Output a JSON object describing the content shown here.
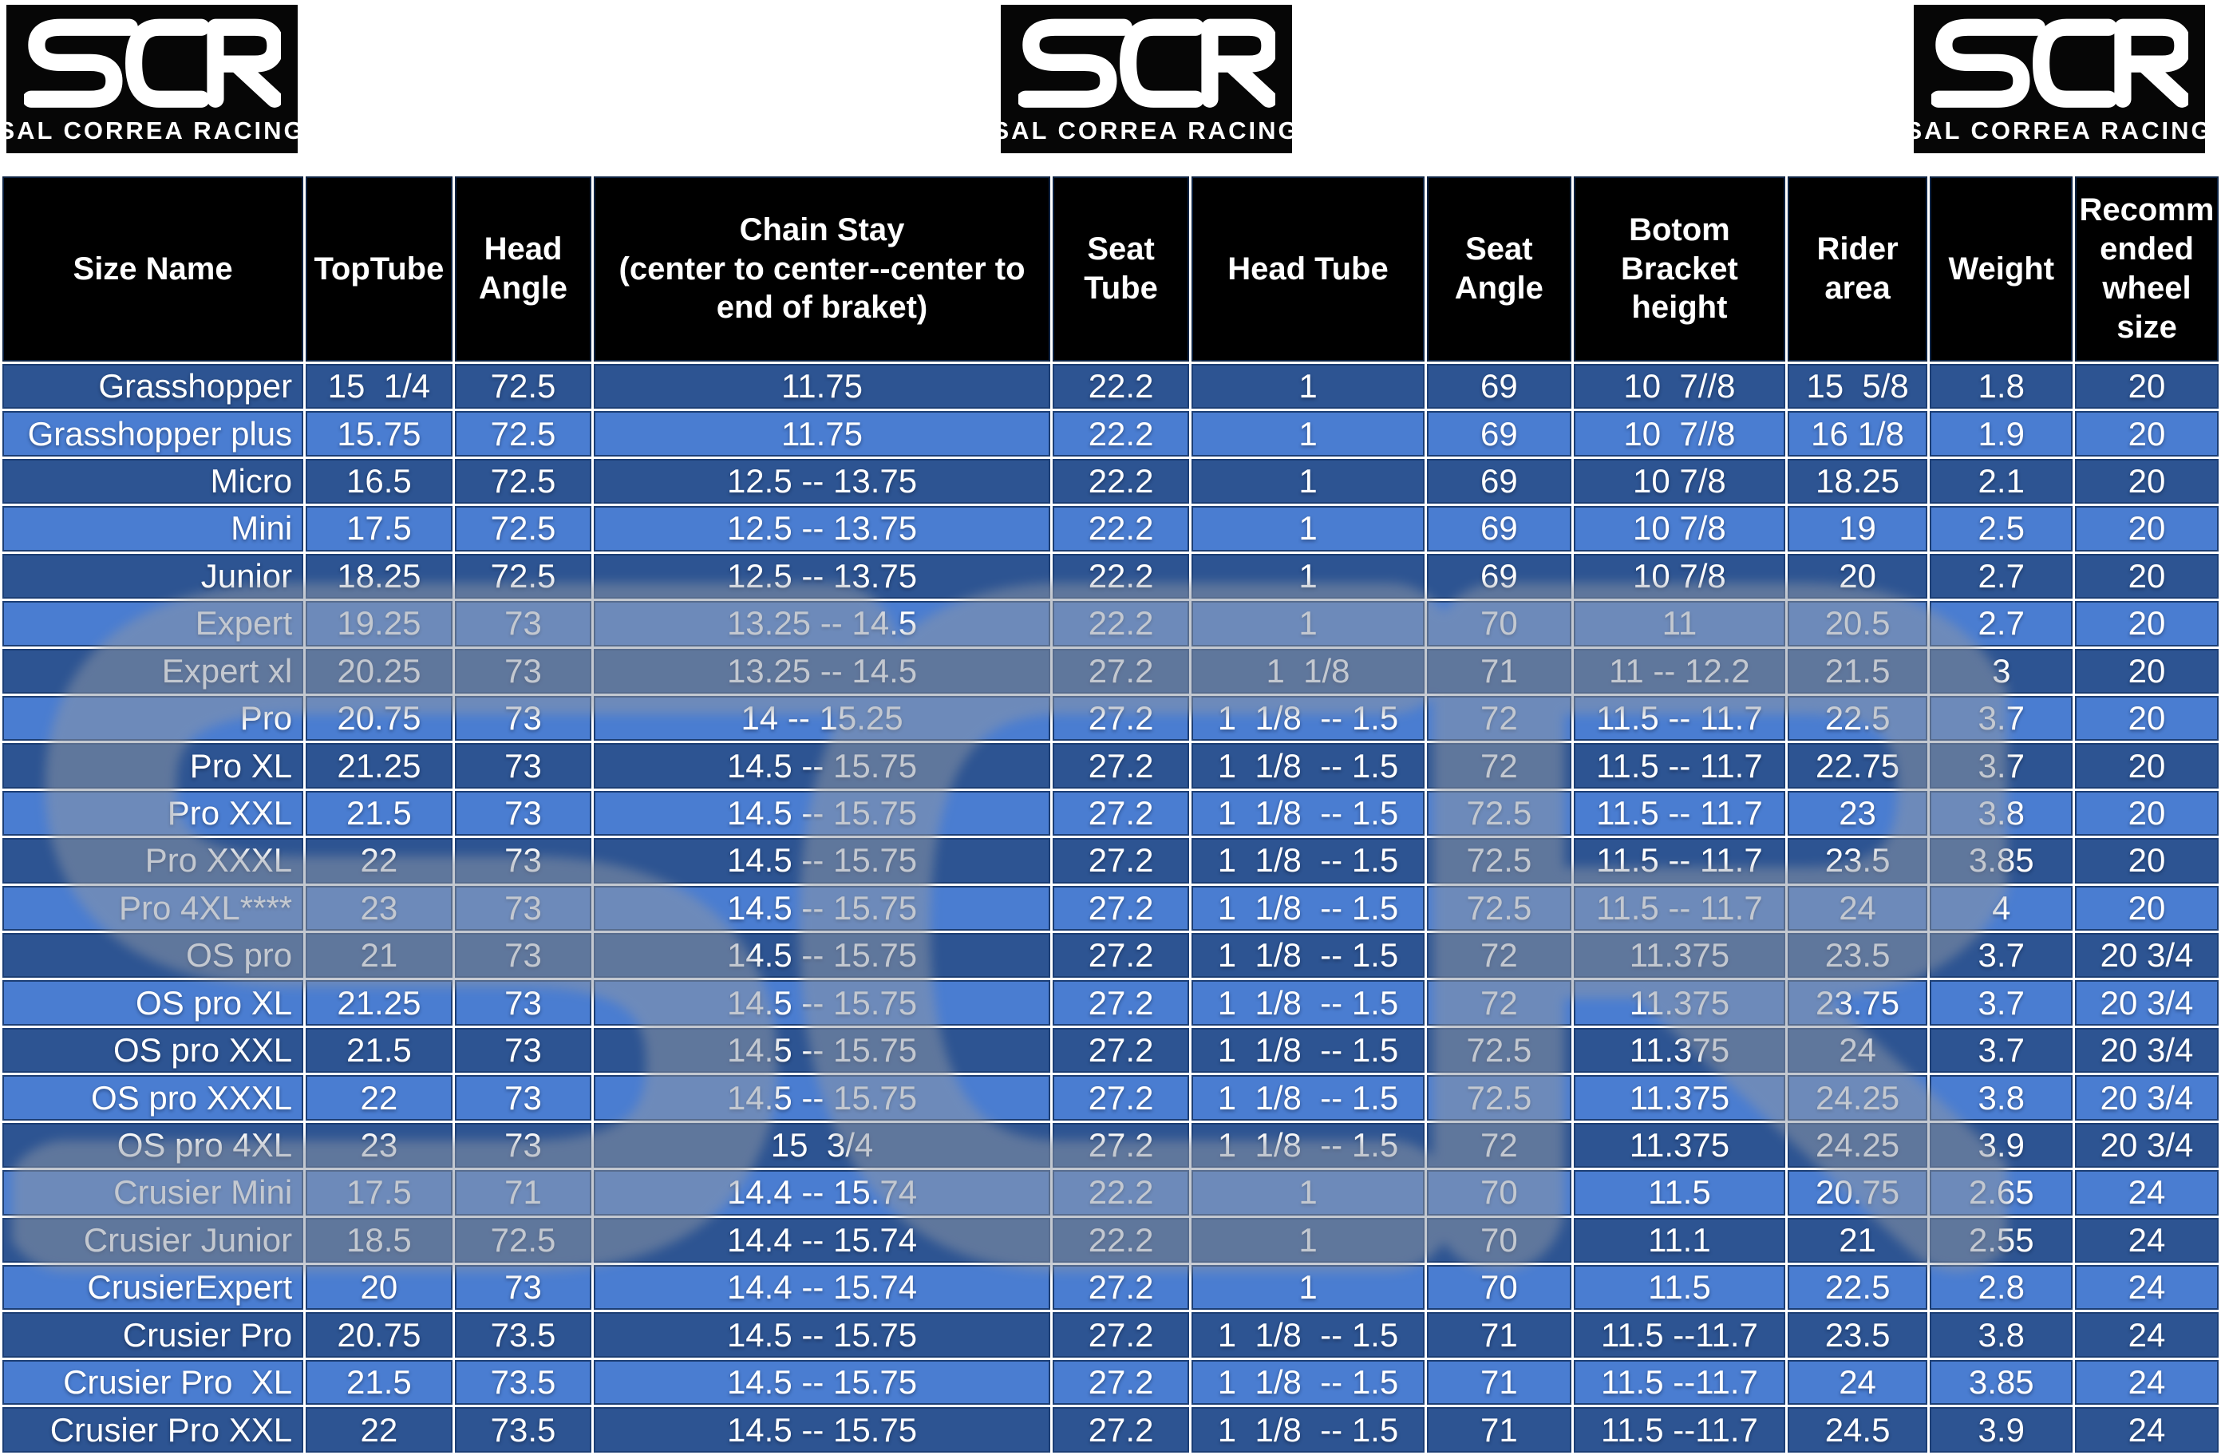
{
  "logos": {
    "monogram": "SCR",
    "wordmark": "SAL CORREA RACING",
    "count": 3
  },
  "watermark_monogram": "SCR",
  "colors": {
    "header_bg": "#000000",
    "row_dark": "#2d5492",
    "row_light": "#4a7dd1",
    "grid_gap": "#ffffff",
    "cell_border": "#1c3e74",
    "text": "#ffffff",
    "watermark_gray": "#8e97a6",
    "logo_bg": "#060606"
  },
  "table": {
    "columns": [
      "Size Name",
      "TopTube",
      "Head\nAngle",
      "Chain Stay\n(center to center--center to\nend of braket)",
      "Seat\nTube",
      "Head Tube",
      "Seat\nAngle",
      "Botom\nBracket\nheight",
      "Rider\narea",
      "Weight",
      "Recomm\nended\nwheel\nsize"
    ],
    "rows": [
      [
        "Grasshopper",
        "15  1/4",
        "72.5",
        "11.75",
        "22.2",
        "1",
        "69",
        "10  7//8",
        "15  5/8",
        "1.8",
        "20"
      ],
      [
        "Grasshopper plus",
        "15.75",
        "72.5",
        "11.75",
        "22.2",
        "1",
        "69",
        "10  7//8",
        "16 1/8",
        "1.9",
        "20"
      ],
      [
        "Micro",
        "16.5",
        "72.5",
        "12.5 -- 13.75",
        "22.2",
        "1",
        "69",
        "10 7/8",
        "18.25",
        "2.1",
        "20"
      ],
      [
        "Mini",
        "17.5",
        "72.5",
        "12.5 -- 13.75",
        "22.2",
        "1",
        "69",
        "10 7/8",
        "19",
        "2.5",
        "20"
      ],
      [
        "Junior",
        "18.25",
        "72.5",
        "12.5 -- 13.75",
        "22.2",
        "1",
        "69",
        "10 7/8",
        "20",
        "2.7",
        "20"
      ],
      [
        "Expert",
        "19.25",
        "73",
        "13.25 -- 14.5",
        "22.2",
        "1",
        "70",
        "11",
        "20.5",
        "2.7",
        "20"
      ],
      [
        "Expert xl",
        "20.25",
        "73",
        "13.25 -- 14.5",
        "27.2",
        "1  1/8",
        "71",
        "11 -- 12.2",
        "21.5",
        "3",
        "20"
      ],
      [
        "Pro",
        "20.75",
        "73",
        "14 -- 15.25",
        "27.2",
        "1  1/8  -- 1.5",
        "72",
        "11.5 -- 11.7",
        "22.5",
        "3.7",
        "20"
      ],
      [
        "Pro XL",
        "21.25",
        "73",
        "14.5 -- 15.75",
        "27.2",
        "1  1/8  -- 1.5",
        "72",
        "11.5 -- 11.7",
        "22.75",
        "3.7",
        "20"
      ],
      [
        "Pro XXL",
        "21.5",
        "73",
        "14.5 -- 15.75",
        "27.2",
        "1  1/8  -- 1.5",
        "72.5",
        "11.5 -- 11.7",
        "23",
        "3.8",
        "20"
      ],
      [
        "Pro XXXL",
        "22",
        "73",
        "14.5 -- 15.75",
        "27.2",
        "1  1/8  -- 1.5",
        "72.5",
        "11.5 -- 11.7",
        "23.5",
        "3.85",
        "20"
      ],
      [
        "Pro 4XL****",
        "23",
        "73",
        "14.5 -- 15.75",
        "27.2",
        "1  1/8  -- 1.5",
        "72.5",
        "11.5 -- 11.7",
        "24",
        "4",
        "20"
      ],
      [
        "OS pro",
        "21",
        "73",
        "14.5 -- 15.75",
        "27.2",
        "1  1/8  -- 1.5",
        "72",
        "11.375",
        "23.5",
        "3.7",
        "20 3/4"
      ],
      [
        "OS pro XL",
        "21.25",
        "73",
        "14.5 -- 15.75",
        "27.2",
        "1  1/8  -- 1.5",
        "72",
        "11.375",
        "23.75",
        "3.7",
        "20 3/4"
      ],
      [
        "OS pro XXL",
        "21.5",
        "73",
        "14.5 -- 15.75",
        "27.2",
        "1  1/8  -- 1.5",
        "72.5",
        "11.375",
        "24",
        "3.7",
        "20 3/4"
      ],
      [
        "OS pro XXXL",
        "22",
        "73",
        "14.5 -- 15.75",
        "27.2",
        "1  1/8  -- 1.5",
        "72.5",
        "11.375",
        "24.25",
        "3.8",
        "20 3/4"
      ],
      [
        "OS pro 4XL",
        "23",
        "73",
        "15  3/4",
        "27.2",
        "1  1/8  -- 1.5",
        "72",
        "11.375",
        "24.25",
        "3.9",
        "20 3/4"
      ],
      [
        "Crusier Mini",
        "17.5",
        "71",
        "14.4 -- 15.74",
        "22.2",
        "1",
        "70",
        "11.5",
        "20.75",
        "2.65",
        "24"
      ],
      [
        "Crusier Junior",
        "18.5",
        "72.5",
        "14.4 -- 15.74",
        "22.2",
        "1",
        "70",
        "11.1",
        "21",
        "2.55",
        "24"
      ],
      [
        "CrusierExpert",
        "20",
        "73",
        "14.4 -- 15.74",
        "27.2",
        "1",
        "70",
        "11.5",
        "22.5",
        "2.8",
        "24"
      ],
      [
        "Crusier Pro",
        "20.75",
        "73.5",
        "14.5 -- 15.75",
        "27.2",
        "1  1/8  -- 1.5",
        "71",
        "11.5 --11.7",
        "23.5",
        "3.8",
        "24"
      ],
      [
        "Crusier Pro  XL",
        "21.5",
        "73.5",
        "14.5 -- 15.75",
        "27.2",
        "1  1/8  -- 1.5",
        "71",
        "11.5 --11.7",
        "24",
        "3.85",
        "24"
      ],
      [
        "Crusier Pro XXL",
        "22",
        "73.5",
        "14.5 -- 15.75",
        "27.2",
        "1  1/8  -- 1.5",
        "71",
        "11.5 --11.7",
        "24.5",
        "3.9",
        "24"
      ]
    ],
    "column_widths_pct": [
      13.73,
      6.68,
      6.25,
      20.8,
      6.25,
      10.6,
      6.61,
      9.63,
      6.4,
      6.5,
      6.55
    ],
    "row_shading_start": "dark"
  }
}
